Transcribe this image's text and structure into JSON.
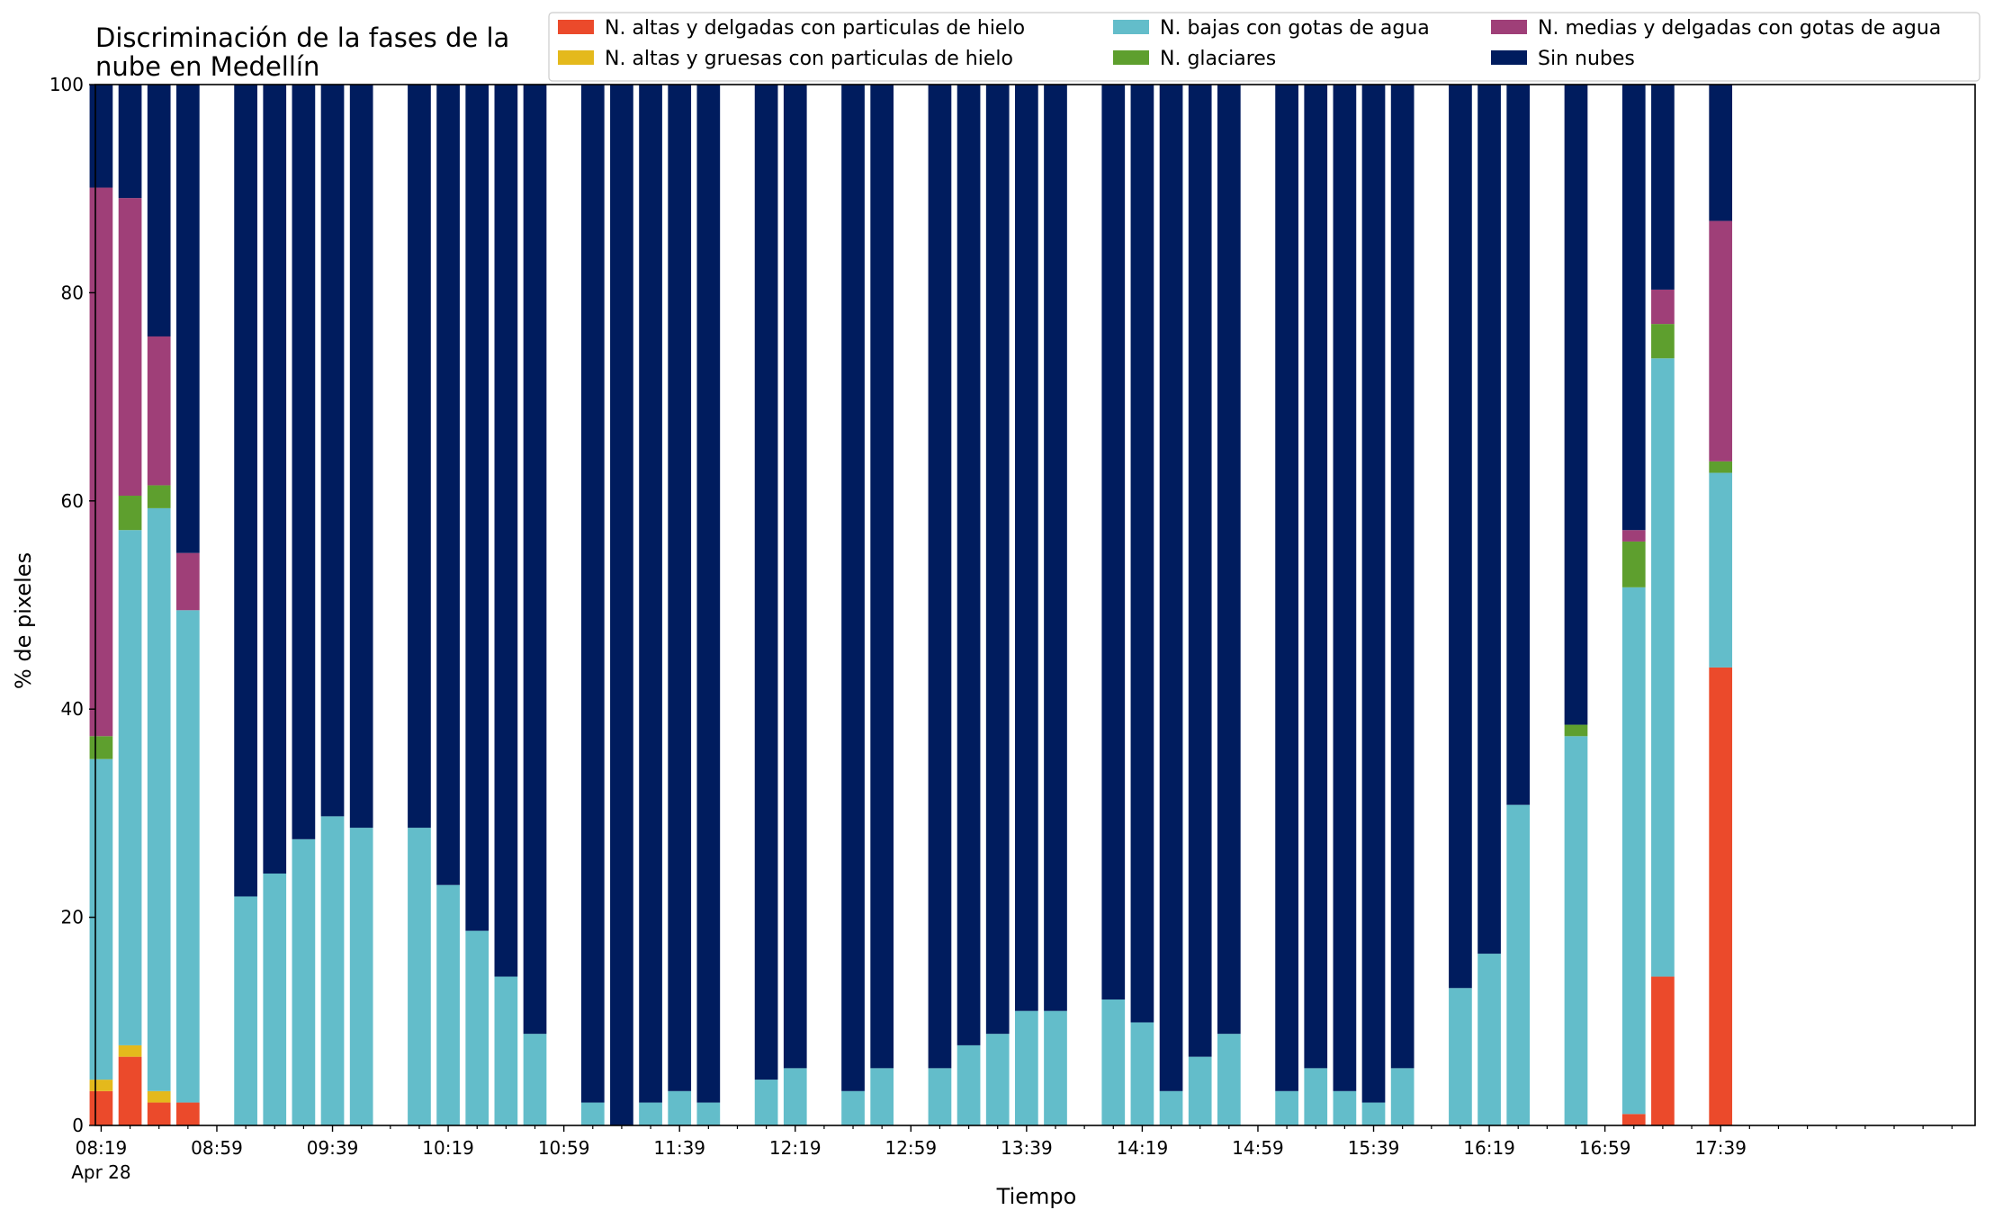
{
  "chart_data": {
    "type": "bar",
    "stacked": true,
    "title": "Discriminación de la fases de la nube en Medellín",
    "title_lines": [
      "Discriminación de la fases de la",
      "nube en Medellín"
    ],
    "xlabel": "Tiempo",
    "ylabel": "% de pixeles",
    "ylim": [
      0,
      100
    ],
    "yticks": [
      "0",
      "20",
      "40",
      "60",
      "80",
      "100"
    ],
    "x_unit_minutes_from": "08:19",
    "xlim": [
      -4,
      1296
    ],
    "xticks": [
      {
        "minute": 0,
        "label": "08:19",
        "sublabel": "Apr 28"
      },
      {
        "minute": 80,
        "label": "08:59"
      },
      {
        "minute": 160,
        "label": "09:39"
      },
      {
        "minute": 240,
        "label": "10:19"
      },
      {
        "minute": 320,
        "label": "10:59"
      },
      {
        "minute": 400,
        "label": "11:39"
      },
      {
        "minute": 480,
        "label": "12:19"
      },
      {
        "minute": 560,
        "label": "12:59"
      },
      {
        "minute": 640,
        "label": "13:39"
      },
      {
        "minute": 720,
        "label": "14:19"
      },
      {
        "minute": 800,
        "label": "14:59"
      },
      {
        "minute": 880,
        "label": "15:39"
      },
      {
        "minute": 960,
        "label": "16:19"
      },
      {
        "minute": 1040,
        "label": "16:59"
      },
      {
        "minute": 1120,
        "label": "17:39"
      }
    ],
    "minor_tick_step_minutes": 20,
    "legend_position": "top-right",
    "series": [
      {
        "name": "N. altas y delgadas con particulas de hielo",
        "color": "#EB4A2B"
      },
      {
        "name": "N. altas y gruesas con particulas de hielo",
        "color": "#E4B91C"
      },
      {
        "name": "N. bajas con gotas de agua",
        "color": "#63BDCA"
      },
      {
        "name": "N. glaciares",
        "color": "#5E9F2E"
      },
      {
        "name": "N. medias y delgadas con gotas de agua",
        "color": "#9F3F78"
      },
      {
        "name": "Sin nubes",
        "color": "#001C5E"
      }
    ],
    "bars": [
      {
        "minute": 0,
        "values": [
          3.3,
          1.1,
          30.8,
          2.2,
          52.7,
          9.9
        ]
      },
      {
        "minute": 20,
        "values": [
          6.6,
          1.1,
          49.5,
          3.3,
          28.6,
          10.9
        ]
      },
      {
        "minute": 40,
        "values": [
          2.2,
          1.1,
          56.0,
          2.2,
          14.3,
          24.2
        ]
      },
      {
        "minute": 60,
        "values": [
          2.2,
          0,
          47.3,
          0,
          5.5,
          45.0
        ]
      },
      {
        "minute": 100,
        "values": [
          0,
          0,
          22.0,
          0,
          0,
          78.0
        ]
      },
      {
        "minute": 120,
        "values": [
          0,
          0,
          24.2,
          0,
          0,
          75.8
        ]
      },
      {
        "minute": 140,
        "values": [
          0,
          0,
          27.5,
          0,
          0,
          72.5
        ]
      },
      {
        "minute": 160,
        "values": [
          0,
          0,
          29.7,
          0,
          0,
          70.3
        ]
      },
      {
        "minute": 180,
        "values": [
          0,
          0,
          28.6,
          0,
          0,
          71.4
        ]
      },
      {
        "minute": 220,
        "values": [
          0,
          0,
          28.6,
          0,
          0,
          71.4
        ]
      },
      {
        "minute": 240,
        "values": [
          0,
          0,
          23.1,
          0,
          0,
          76.9
        ]
      },
      {
        "minute": 260,
        "values": [
          0,
          0,
          18.7,
          0,
          0,
          81.3
        ]
      },
      {
        "minute": 280,
        "values": [
          0,
          0,
          14.3,
          0,
          0,
          85.7
        ]
      },
      {
        "minute": 300,
        "values": [
          0,
          0,
          8.8,
          0,
          0,
          91.2
        ]
      },
      {
        "minute": 340,
        "values": [
          0,
          0,
          2.2,
          0,
          0,
          97.8
        ]
      },
      {
        "minute": 360,
        "values": [
          0,
          0,
          0,
          0,
          0,
          100
        ]
      },
      {
        "minute": 380,
        "values": [
          0,
          0,
          2.2,
          0,
          0,
          97.8
        ]
      },
      {
        "minute": 400,
        "values": [
          0,
          0,
          3.3,
          0,
          0,
          96.7
        ]
      },
      {
        "minute": 420,
        "values": [
          0,
          0,
          2.2,
          0,
          0,
          97.8
        ]
      },
      {
        "minute": 460,
        "values": [
          0,
          0,
          4.4,
          0,
          0,
          95.6
        ]
      },
      {
        "minute": 480,
        "values": [
          0,
          0,
          5.5,
          0,
          0,
          94.5
        ]
      },
      {
        "minute": 520,
        "values": [
          0,
          0,
          3.3,
          0,
          0,
          96.7
        ]
      },
      {
        "minute": 540,
        "values": [
          0,
          0,
          5.5,
          0,
          0,
          94.5
        ]
      },
      {
        "minute": 580,
        "values": [
          0,
          0,
          5.5,
          0,
          0,
          94.5
        ]
      },
      {
        "minute": 600,
        "values": [
          0,
          0,
          7.7,
          0,
          0,
          92.3
        ]
      },
      {
        "minute": 620,
        "values": [
          0,
          0,
          8.8,
          0,
          0,
          91.2
        ]
      },
      {
        "minute": 640,
        "values": [
          0,
          0,
          11.0,
          0,
          0,
          89.0
        ]
      },
      {
        "minute": 660,
        "values": [
          0,
          0,
          11.0,
          0,
          0,
          89.0
        ]
      },
      {
        "minute": 700,
        "values": [
          0,
          0,
          12.1,
          0,
          0,
          87.9
        ]
      },
      {
        "minute": 720,
        "values": [
          0,
          0,
          9.9,
          0,
          0,
          90.1
        ]
      },
      {
        "minute": 740,
        "values": [
          0,
          0,
          3.3,
          0,
          0,
          96.7
        ]
      },
      {
        "minute": 760,
        "values": [
          0,
          0,
          6.6,
          0,
          0,
          93.4
        ]
      },
      {
        "minute": 780,
        "values": [
          0,
          0,
          8.8,
          0,
          0,
          91.2
        ]
      },
      {
        "minute": 820,
        "values": [
          0,
          0,
          3.3,
          0,
          0,
          96.7
        ]
      },
      {
        "minute": 840,
        "values": [
          0,
          0,
          5.5,
          0,
          0,
          94.5
        ]
      },
      {
        "minute": 860,
        "values": [
          0,
          0,
          3.3,
          0,
          0,
          96.7
        ]
      },
      {
        "minute": 880,
        "values": [
          0,
          0,
          2.2,
          0,
          0,
          97.8
        ]
      },
      {
        "minute": 900,
        "values": [
          0,
          0,
          5.5,
          0,
          0,
          94.5
        ]
      },
      {
        "minute": 940,
        "values": [
          0,
          0,
          13.2,
          0,
          0,
          86.8
        ]
      },
      {
        "minute": 960,
        "values": [
          0,
          0,
          16.5,
          0,
          0,
          83.5
        ]
      },
      {
        "minute": 980,
        "values": [
          0,
          0,
          30.8,
          0,
          0,
          69.2
        ]
      },
      {
        "minute": 1020,
        "values": [
          0,
          0,
          37.4,
          1.1,
          0,
          61.5
        ]
      },
      {
        "minute": 1060,
        "values": [
          1.1,
          0,
          50.6,
          4.4,
          1.1,
          42.8
        ]
      },
      {
        "minute": 1080,
        "values": [
          14.3,
          0,
          59.4,
          3.3,
          3.3,
          19.7
        ]
      },
      {
        "minute": 1120,
        "values": [
          44.0,
          0,
          18.7,
          1.1,
          23.1,
          13.1
        ]
      }
    ]
  }
}
